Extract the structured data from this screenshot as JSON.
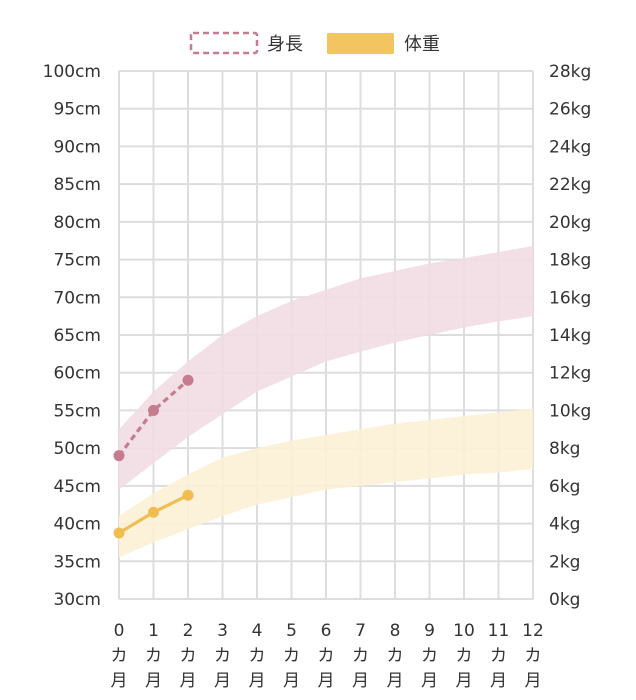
{
  "chart_data": {
    "type": "line",
    "legend": {
      "placement": "top-center",
      "items": [
        {
          "name": "身長",
          "style": "dashed-outline",
          "color": "#c77b8f"
        },
        {
          "name": "体重",
          "style": "filled",
          "color": "#f3c560"
        }
      ]
    },
    "x": {
      "min": 0,
      "max": 12,
      "ticks": [
        {
          "value": 0,
          "label": "0",
          "unit": [
            "カ",
            "月"
          ]
        },
        {
          "value": 1,
          "label": "1",
          "unit": [
            "カ",
            "月"
          ]
        },
        {
          "value": 2,
          "label": "2",
          "unit": [
            "カ",
            "月"
          ]
        },
        {
          "value": 3,
          "label": "3",
          "unit": [
            "カ",
            "月"
          ]
        },
        {
          "value": 4,
          "label": "4",
          "unit": [
            "カ",
            "月"
          ]
        },
        {
          "value": 5,
          "label": "5",
          "unit": [
            "カ",
            "月"
          ]
        },
        {
          "value": 6,
          "label": "6",
          "unit": [
            "カ",
            "月"
          ]
        },
        {
          "value": 7,
          "label": "7",
          "unit": [
            "カ",
            "月"
          ]
        },
        {
          "value": 8,
          "label": "8",
          "unit": [
            "カ",
            "月"
          ]
        },
        {
          "value": 9,
          "label": "9",
          "unit": [
            "カ",
            "月"
          ]
        },
        {
          "value": 10,
          "label": "10",
          "unit": [
            "カ",
            "月"
          ]
        },
        {
          "value": 11,
          "label": "11",
          "unit": [
            "カ",
            "月"
          ]
        },
        {
          "value": 12,
          "label": "12",
          "unit": [
            "カ",
            "月"
          ]
        }
      ]
    },
    "y_left": {
      "min": 30,
      "max": 100,
      "ticks": [
        "100cm",
        "95cm",
        "90cm",
        "85cm",
        "80cm",
        "75cm",
        "70cm",
        "65cm",
        "60cm",
        "55cm",
        "50cm",
        "45cm",
        "40cm",
        "35cm",
        "30cm"
      ],
      "tick_values": [
        100,
        95,
        90,
        85,
        80,
        75,
        70,
        65,
        60,
        55,
        50,
        45,
        40,
        35,
        30
      ]
    },
    "y_right": {
      "min": 0,
      "max": 28,
      "ticks": [
        "28kg",
        "26kg",
        "24kg",
        "22kg",
        "20kg",
        "18kg",
        "16kg",
        "14kg",
        "12kg",
        "10kg",
        "8kg",
        "6kg",
        "4kg",
        "2kg",
        "0kg"
      ],
      "tick_values": [
        28,
        26,
        24,
        22,
        20,
        18,
        16,
        14,
        12,
        10,
        8,
        6,
        4,
        2,
        0
      ]
    },
    "grid": true,
    "bands": [
      {
        "name": "身長",
        "axis": "left",
        "color": "#f1dde3",
        "x": [
          0,
          1,
          2,
          3,
          4,
          5,
          6,
          7,
          8,
          9,
          10,
          11,
          12
        ],
        "upper": [
          52.5,
          57.5,
          61.5,
          65,
          67.5,
          69.5,
          71,
          72.5,
          73.5,
          74.5,
          75.2,
          76,
          76.8
        ],
        "lower": [
          44.5,
          48,
          51.5,
          54.5,
          57.5,
          59.5,
          61.5,
          62.8,
          64,
          65,
          66,
          66.8,
          67.5
        ]
      },
      {
        "name": "体重",
        "axis": "right",
        "color": "#fcf1d6",
        "x": [
          0,
          1,
          2,
          3,
          4,
          5,
          6,
          7,
          8,
          9,
          10,
          11,
          12
        ],
        "upper": [
          4.4,
          5.6,
          6.6,
          7.5,
          8.0,
          8.4,
          8.7,
          9.0,
          9.3,
          9.5,
          9.7,
          9.9,
          10.1
        ],
        "lower": [
          2.2,
          3.0,
          3.7,
          4.4,
          5.0,
          5.4,
          5.8,
          6.0,
          6.2,
          6.4,
          6.6,
          6.7,
          6.9
        ]
      }
    ],
    "series": [
      {
        "name": "身長",
        "axis": "left",
        "color": "#c77b8f",
        "dashed": true,
        "points": [
          {
            "x": 0,
            "y": 49
          },
          {
            "x": 1,
            "y": 55
          },
          {
            "x": 2,
            "y": 59
          }
        ]
      },
      {
        "name": "体重",
        "axis": "right",
        "color": "#f0bd50",
        "dashed": false,
        "points": [
          {
            "x": 0,
            "y": 3.5
          },
          {
            "x": 1,
            "y": 4.6
          },
          {
            "x": 2,
            "y": 5.5
          }
        ]
      }
    ]
  }
}
